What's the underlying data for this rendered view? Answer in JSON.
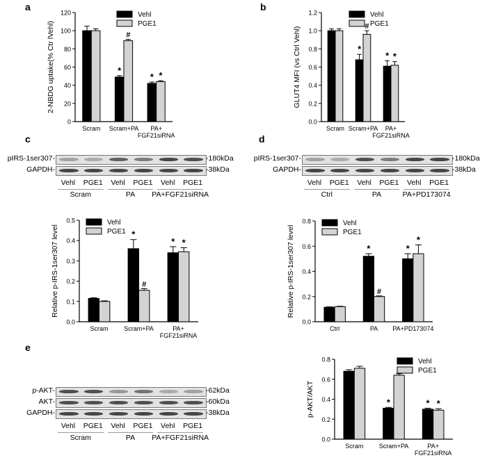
{
  "panels": {
    "a": {
      "letter": "a"
    },
    "b": {
      "letter": "b"
    },
    "c": {
      "letter": "c"
    },
    "d": {
      "letter": "d"
    },
    "e": {
      "letter": "e"
    }
  },
  "colors": {
    "vehl": "#000000",
    "pge1": "#d3d3d3"
  },
  "chart_data": [
    {
      "id": "a",
      "type": "bar",
      "categories": [
        "Scram",
        "Scram+PA",
        "PA+\nFGF21siRNA"
      ],
      "ylabel": "2-NBDG uptake(% Ctr lVehl)",
      "ylim": [
        0,
        120
      ],
      "yticks": [
        0,
        20,
        40,
        60,
        80,
        100,
        120
      ],
      "legend_position": "top-right",
      "series": [
        {
          "name": "Vehl",
          "values": [
            100,
            49,
            42
          ],
          "errors": [
            5,
            1.5,
            1.5
          ],
          "marks": [
            "",
            "*",
            "*"
          ]
        },
        {
          "name": "PGE1",
          "values": [
            100,
            89,
            44
          ],
          "errors": [
            2,
            1.5,
            1
          ],
          "marks": [
            "",
            "#",
            "*"
          ]
        }
      ]
    },
    {
      "id": "b",
      "type": "bar",
      "categories": [
        "Scram",
        "Scram+PA",
        "PA+\nFGF21siRNA"
      ],
      "ylabel": "GLUT4 MFI (vs Ctrl Vehl)",
      "ylim": [
        0,
        1.2
      ],
      "yticks": [
        "0.0",
        "0.2",
        "0.4",
        "0.6",
        "0.8",
        "1.0",
        "1.2"
      ],
      "legend_position": "top-right",
      "series": [
        {
          "name": "Vehl",
          "values": [
            1.0,
            0.68,
            0.61
          ],
          "errors": [
            0.02,
            0.06,
            0.06
          ],
          "marks": [
            "",
            "*",
            "*"
          ]
        },
        {
          "name": "PGE1",
          "values": [
            1.0,
            0.96,
            0.62
          ],
          "errors": [
            0.02,
            0.04,
            0.04
          ],
          "marks": [
            "",
            "#",
            "*"
          ]
        }
      ]
    },
    {
      "id": "c",
      "type": "bar",
      "categories": [
        "Scram",
        "Scram+PA",
        "PA+\nFGF21siRNA"
      ],
      "ylabel": "Relative p-IRS-1ser307 level",
      "ylim": [
        0,
        0.5
      ],
      "yticks": [
        "0.0",
        "0.1",
        "0.2",
        "0.3",
        "0.4",
        "0.5"
      ],
      "legend_position": "top-left",
      "series": [
        {
          "name": "Vehl",
          "values": [
            0.115,
            0.36,
            0.34
          ],
          "errors": [
            0.003,
            0.045,
            0.03
          ],
          "marks": [
            "",
            "*",
            "*"
          ]
        },
        {
          "name": "PGE1",
          "values": [
            0.1,
            0.155,
            0.345
          ],
          "errors": [
            0.003,
            0.008,
            0.02
          ],
          "marks": [
            "",
            "#",
            "*"
          ]
        }
      ]
    },
    {
      "id": "d",
      "type": "bar",
      "categories": [
        "Ctrl",
        "PA",
        "PA+PD173074"
      ],
      "ylabel": "Relative p-IRS-1ser307 level",
      "ylim": [
        0,
        0.8
      ],
      "yticks": [
        "0.0",
        "0.2",
        "0.4",
        "0.6",
        "0.8"
      ],
      "legend_position": "top-left",
      "series": [
        {
          "name": "Vehl",
          "values": [
            0.115,
            0.52,
            0.5
          ],
          "errors": [
            0.003,
            0.02,
            0.04
          ],
          "marks": [
            "",
            "*",
            "*"
          ]
        },
        {
          "name": "PGE1",
          "values": [
            0.12,
            0.2,
            0.54
          ],
          "errors": [
            0.003,
            0.005,
            0.07
          ],
          "marks": [
            "",
            "#",
            "*"
          ]
        }
      ]
    },
    {
      "id": "e",
      "type": "bar",
      "categories": [
        "Scram",
        "Scram+PA",
        "PA+\nFGF21siRNA"
      ],
      "ylabel": "p-AKT/AKT",
      "ylim": [
        0,
        0.8
      ],
      "yticks": [
        "0.0",
        "0.2",
        "0.4",
        "0.6",
        "0.8"
      ],
      "legend_position": "top-right",
      "series": [
        {
          "name": "Vehl",
          "values": [
            0.68,
            0.31,
            0.3
          ],
          "errors": [
            0.015,
            0.008,
            0.01
          ],
          "marks": [
            "",
            "*",
            "*"
          ]
        },
        {
          "name": "PGE1",
          "values": [
            0.71,
            0.64,
            0.29
          ],
          "errors": [
            0.02,
            0.015,
            0.015
          ],
          "marks": [
            "",
            "#",
            "*"
          ]
        }
      ]
    }
  ],
  "blots": {
    "c": {
      "rows": [
        {
          "label": "pIRS-1ser307-",
          "size": "-180kDa",
          "intensity": [
            0.35,
            0.3,
            0.7,
            0.55,
            0.85,
            0.8
          ]
        },
        {
          "label": "GAPDH-",
          "size": "-38kDa",
          "intensity": [
            0.85,
            0.85,
            0.85,
            0.85,
            0.85,
            0.85
          ]
        }
      ],
      "lanes": [
        "Vehl",
        "PGE1",
        "Vehl",
        "PGE1",
        "Vehl",
        "PGE1"
      ],
      "groups": [
        "Scram",
        "PA",
        "PA+FGF21siRNA"
      ]
    },
    "d": {
      "rows": [
        {
          "label": "pIRS-1ser307-",
          "size": "-180kDa",
          "intensity": [
            0.35,
            0.3,
            0.8,
            0.55,
            0.85,
            0.85
          ]
        },
        {
          "label": "GAPDH-",
          "size": "-38kDa",
          "intensity": [
            0.85,
            0.85,
            0.85,
            0.85,
            0.85,
            0.85
          ]
        }
      ],
      "lanes": [
        "Vehl",
        "PGE1",
        "Vehl",
        "PGE1",
        "Vehl",
        "PGE1"
      ],
      "groups": [
        "Ctrl",
        "PA",
        "PA+PD173074"
      ]
    },
    "e": {
      "rows": [
        {
          "label": "p-AKT-",
          "size": "-62kDa",
          "intensity": [
            0.8,
            0.8,
            0.4,
            0.6,
            0.3,
            0.35
          ]
        },
        {
          "label": "AKT-",
          "size": "-60kDa",
          "intensity": [
            0.8,
            0.8,
            0.8,
            0.8,
            0.8,
            0.8
          ]
        },
        {
          "label": "GAPDH-",
          "size": "-38kDa",
          "intensity": [
            0.85,
            0.85,
            0.85,
            0.85,
            0.85,
            0.85
          ]
        }
      ],
      "lanes": [
        "Vehl",
        "PGE1",
        "Vehl",
        "PGE1",
        "Vehl",
        "PGE1"
      ],
      "groups": [
        "Scram",
        "PA",
        "PA+FGF21siRNA"
      ]
    }
  }
}
